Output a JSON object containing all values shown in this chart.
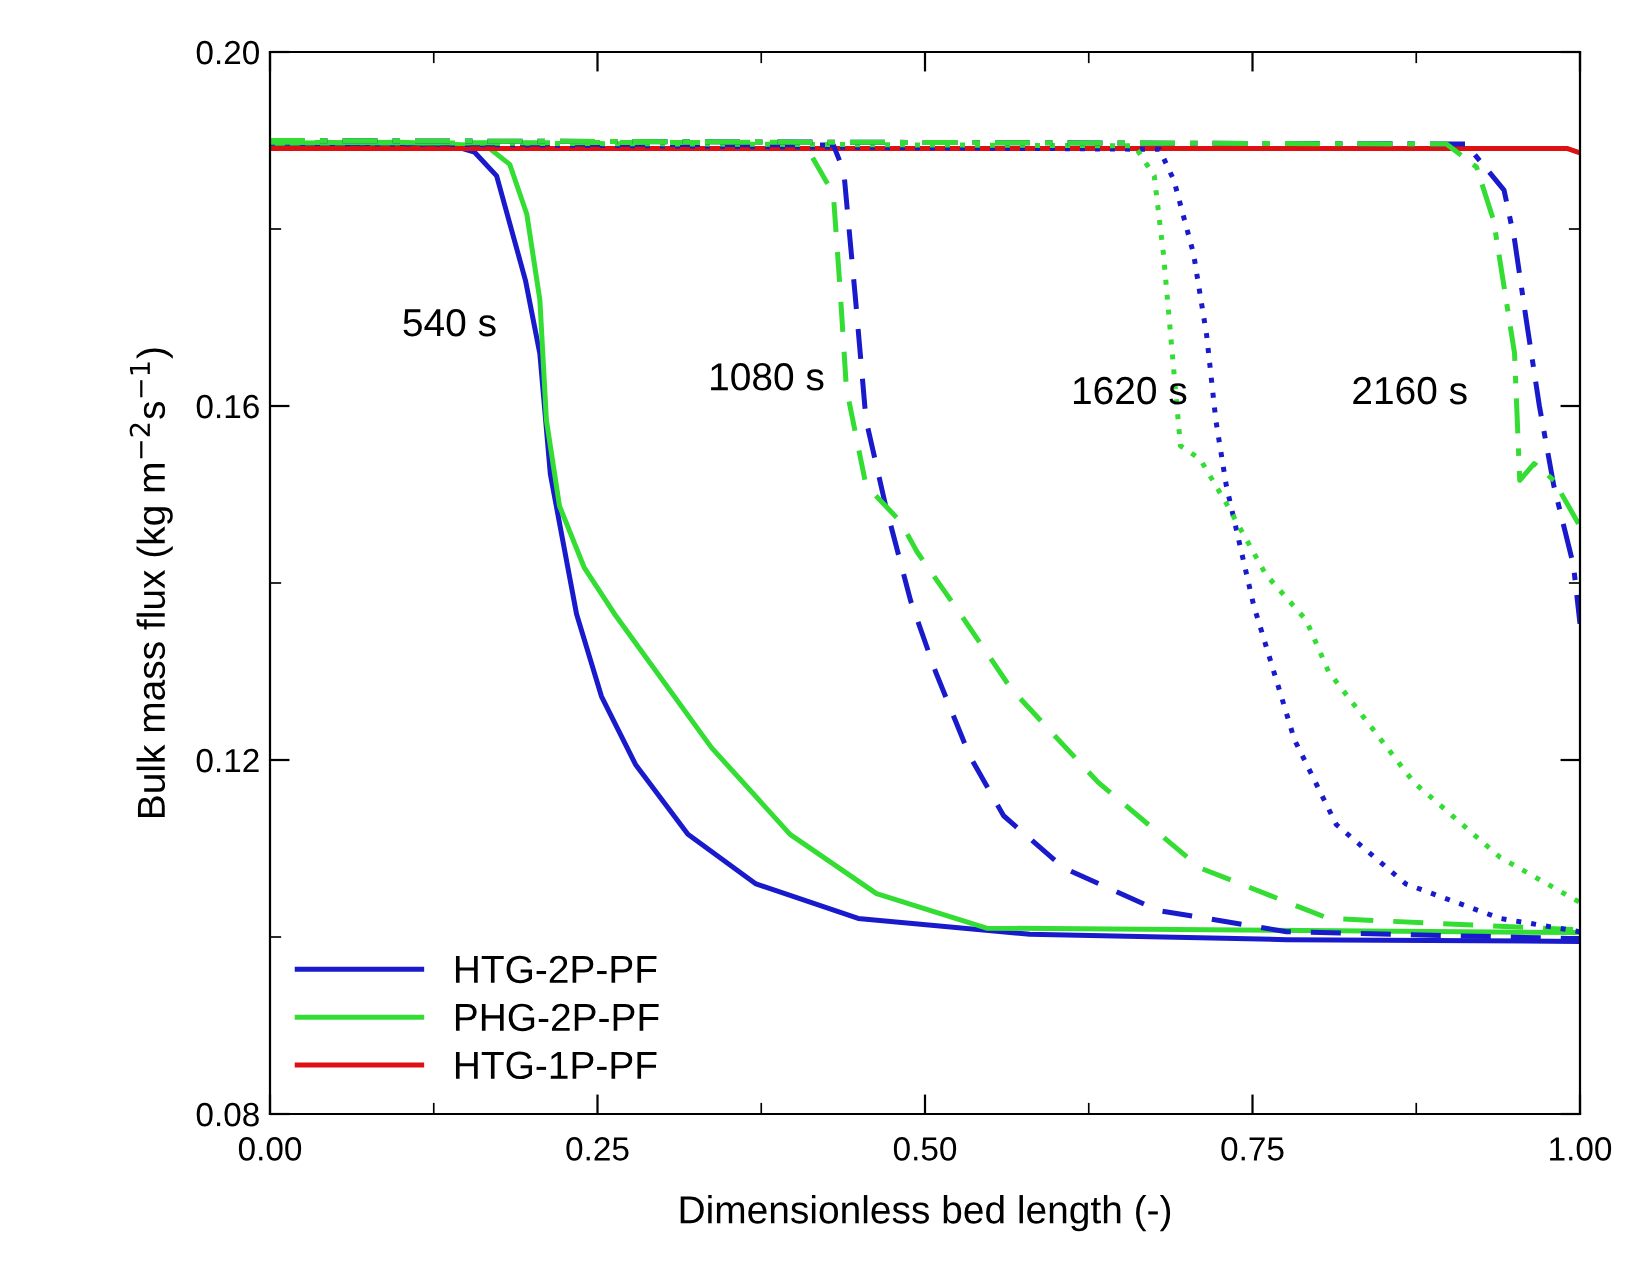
{
  "chart_data": {
    "type": "line",
    "xlabel": "Dimensionless bed length (-)",
    "ylabel": "Bulk mass flux (kg m$^{−2}$s$^{−1}$)",
    "xlim": [
      0,
      1
    ],
    "ylim": [
      0.08,
      0.2
    ],
    "xticks": [
      {
        "value": 0,
        "label": "0.00"
      },
      {
        "value": 0.25,
        "label": "0.25"
      },
      {
        "value": 0.5,
        "label": "0.50"
      },
      {
        "value": 0.75,
        "label": "0.75"
      },
      {
        "value": 1,
        "label": "1.00"
      }
    ],
    "yticks": [
      {
        "value": 0.08,
        "label": "0.08"
      },
      {
        "value": 0.12,
        "label": "0.12"
      },
      {
        "value": 0.16,
        "label": "0.16"
      },
      {
        "value": 0.2,
        "label": "0.20"
      }
    ],
    "grid": false,
    "legend": "bottom left",
    "marker": "none",
    "annotations": [
      "540 s",
      "1080 s",
      "1620 s",
      "2160 s"
    ],
    "series": [
      {
        "name": "HTG-2P-PF",
        "color": "#1a1acd",
        "line_style": "solid",
        "x": [
          0,
          0.14,
          0.156,
          0.173,
          0.195,
          0.206,
          0.214,
          0.234,
          0.253,
          0.279,
          0.319,
          0.371,
          0.449,
          0.58,
          0.776,
          1.0
        ],
        "values": [
          0.1896,
          0.1894,
          0.1887,
          0.186,
          0.1742,
          0.1659,
          0.1523,
          0.1365,
          0.1272,
          0.1195,
          0.1116,
          0.106,
          0.1021,
          0.1003,
          0.0997,
          0.0995
        ]
      },
      {
        "name": "PHG-2P-PF",
        "color": "#33dd33",
        "line_style": "solid",
        "x": [
          0,
          0.1,
          0.165,
          0.183,
          0.196,
          0.206,
          0.211,
          0.221,
          0.24,
          0.263,
          0.285,
          0.337,
          0.397,
          0.463,
          0.547,
          1.0
        ],
        "values": [
          0.1897,
          0.1898,
          0.1894,
          0.1873,
          0.1817,
          0.172,
          0.1584,
          0.1487,
          0.1417,
          0.1365,
          0.132,
          0.1214,
          0.1116,
          0.1049,
          0.101,
          0.1005
        ]
      },
      {
        "name": "HTG-1P-PF",
        "color": "#dd1111",
        "line_style": "solid",
        "x": [
          0,
          0.99,
          1.0
        ],
        "values": [
          0.1891,
          0.1891,
          0.1886
        ]
      },
      {
        "color": "#1a1acd",
        "line_style": "dashed",
        "x": [
          0,
          0.43,
          0.438,
          0.447,
          0.455,
          0.47,
          0.489,
          0.508,
          0.534,
          0.56,
          0.606,
          0.678,
          0.776,
          1.0
        ],
        "values": [
          0.1897,
          0.1895,
          0.1865,
          0.172,
          0.1584,
          0.1487,
          0.138,
          0.13,
          0.1205,
          0.1137,
          0.1078,
          0.103,
          0.1006,
          0.0998
        ]
      },
      {
        "color": "#33dd33",
        "line_style": "dashed",
        "x": [
          0,
          0.4,
          0.409,
          0.43,
          0.435,
          0.44,
          0.455,
          0.481,
          0.494,
          0.527,
          0.566,
          0.632,
          0.71,
          0.808,
          1.0
        ],
        "values": [
          0.1897,
          0.1898,
          0.1894,
          0.184,
          0.1736,
          0.162,
          0.151,
          0.147,
          0.1435,
          0.1365,
          0.128,
          0.1175,
          0.1078,
          0.1021,
          0.1008
        ]
      },
      {
        "color": "#1a1acd",
        "line_style": "dotted",
        "x": [
          0,
          0.679,
          0.69,
          0.705,
          0.715,
          0.722,
          0.73,
          0.751,
          0.756,
          0.782,
          0.814,
          0.867,
          0.939,
          1.0
        ],
        "values": [
          0.1897,
          0.189,
          0.1855,
          0.1772,
          0.168,
          0.1584,
          0.151,
          0.1374,
          0.135,
          0.1223,
          0.1127,
          0.106,
          0.1021,
          0.1006
        ]
      },
      {
        "color": "#33dd33",
        "line_style": "dotted",
        "x": [
          0,
          0.66,
          0.675,
          0.682,
          0.695,
          0.71,
          0.73,
          0.76,
          0.791,
          0.808,
          0.873,
          0.939,
          1.0
        ],
        "values": [
          0.1898,
          0.1894,
          0.186,
          0.1772,
          0.1555,
          0.154,
          0.149,
          0.141,
          0.1358,
          0.13,
          0.1175,
          0.109,
          0.1039
        ]
      },
      {
        "color": "#1a1acd",
        "line_style": "dashdot",
        "x": [
          0,
          0.913,
          0.942,
          0.95,
          0.959,
          0.969,
          0.98,
          0.995,
          1.0
        ],
        "values": [
          0.19,
          0.1896,
          0.1844,
          0.1788,
          0.1697,
          0.16,
          0.151,
          0.142,
          0.1354
        ]
      },
      {
        "color": "#33dd33",
        "line_style": "dashdot",
        "x": [
          0,
          0.898,
          0.921,
          0.934,
          0.95,
          0.954,
          0.965,
          0.98,
          1.0
        ],
        "values": [
          0.19,
          0.1896,
          0.187,
          0.181,
          0.166,
          0.1516,
          0.1535,
          0.1516,
          0.1464
        ]
      }
    ]
  }
}
